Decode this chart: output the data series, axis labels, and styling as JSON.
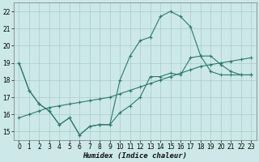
{
  "xlabel": "Humidex (Indice chaleur)",
  "bg_color": "#cce8e8",
  "grid_color": "#aacccc",
  "line_color": "#2d7a6e",
  "xlim": [
    -0.5,
    23.5
  ],
  "ylim": [
    14.5,
    22.5
  ],
  "xticks": [
    0,
    1,
    2,
    3,
    4,
    5,
    6,
    7,
    8,
    9,
    10,
    11,
    12,
    13,
    14,
    15,
    16,
    17,
    18,
    19,
    20,
    21,
    22,
    23
  ],
  "yticks": [
    15,
    16,
    17,
    18,
    19,
    20,
    21,
    22
  ],
  "line1_x": [
    0,
    1,
    2,
    3,
    4,
    5,
    6,
    7,
    8,
    9,
    10,
    11,
    12,
    13,
    14,
    15,
    16,
    17,
    18,
    19,
    20,
    21,
    22,
    23
  ],
  "line1_y": [
    19.0,
    17.4,
    16.6,
    16.2,
    15.4,
    15.8,
    14.8,
    15.3,
    15.4,
    15.4,
    16.1,
    16.5,
    17.0,
    18.2,
    18.2,
    18.4,
    18.3,
    19.3,
    19.4,
    18.5,
    18.3,
    18.3,
    18.3,
    18.3
  ],
  "line2_x": [
    0,
    1,
    2,
    3,
    4,
    5,
    6,
    7,
    8,
    9,
    10,
    11,
    12,
    13,
    14,
    15,
    16,
    17,
    18,
    19,
    20,
    21,
    22,
    23
  ],
  "line2_y": [
    15.8,
    16.0,
    16.2,
    16.4,
    16.5,
    16.6,
    16.7,
    16.8,
    16.9,
    17.0,
    17.2,
    17.4,
    17.6,
    17.8,
    18.0,
    18.2,
    18.4,
    18.6,
    18.8,
    18.9,
    19.0,
    19.1,
    19.2,
    19.3
  ],
  "line3_x": [
    0,
    1,
    2,
    3,
    4,
    5,
    6,
    7,
    8,
    9,
    10,
    11,
    12,
    13,
    14,
    15,
    16,
    17,
    18,
    19,
    20,
    21,
    22,
    23
  ],
  "line3_y": [
    19.0,
    17.4,
    16.6,
    16.2,
    15.4,
    15.8,
    14.8,
    15.3,
    15.4,
    15.4,
    18.0,
    19.4,
    20.3,
    20.5,
    21.7,
    22.0,
    21.7,
    21.1,
    19.4,
    19.4,
    18.9,
    18.5,
    18.3,
    18.3
  ]
}
